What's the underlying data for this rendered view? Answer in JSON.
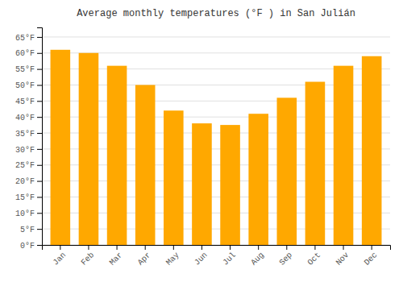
{
  "chart_data": {
    "type": "bar",
    "title": "Average monthly temperatures (°F ) in San Julián",
    "categories": [
      "Jan",
      "Feb",
      "Mar",
      "Apr",
      "May",
      "Jun",
      "Jul",
      "Aug",
      "Sep",
      "Oct",
      "Nov",
      "Dec"
    ],
    "values": [
      61,
      60,
      56,
      50,
      42,
      38,
      37.5,
      41,
      46,
      51,
      56,
      59
    ],
    "color": "#FFA800",
    "ylim": [
      0,
      68
    ],
    "yticks": [
      {
        "value": 0,
        "label": "0°F"
      },
      {
        "value": 5,
        "label": "5°F"
      },
      {
        "value": 10,
        "label": "10°F"
      },
      {
        "value": 15,
        "label": "15°F"
      },
      {
        "value": 20,
        "label": "20°F"
      },
      {
        "value": 25,
        "label": "25°F"
      },
      {
        "value": 30,
        "label": "30°F"
      },
      {
        "value": 35,
        "label": "35°F"
      },
      {
        "value": 40,
        "label": "40°F"
      },
      {
        "value": 45,
        "label": "45°F"
      },
      {
        "value": 50,
        "label": "50°F"
      },
      {
        "value": 55,
        "label": "55°F"
      },
      {
        "value": 60,
        "label": "60°F"
      },
      {
        "value": 65,
        "label": "65°F"
      }
    ],
    "grid": true
  }
}
